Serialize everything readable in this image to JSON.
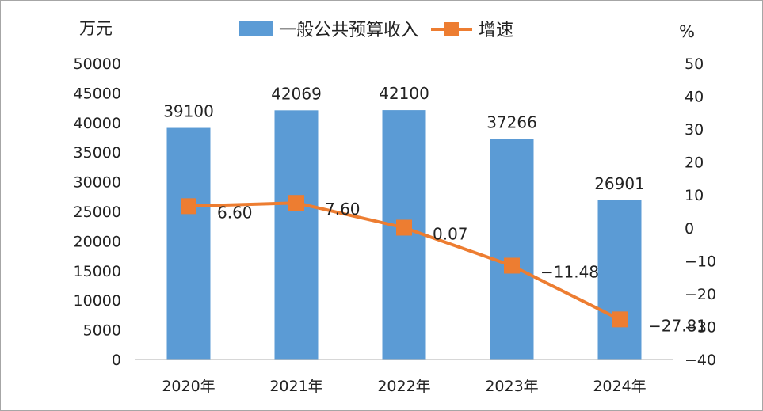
{
  "chart_data": {
    "type": "bar+line",
    "categories": [
      "2020年",
      "2021年",
      "2022年",
      "2023年",
      "2024年"
    ],
    "series": [
      {
        "name": "一般公共预算收入",
        "type": "bar",
        "axis": "left",
        "color": "#5b9bd5",
        "values": [
          39100,
          42069,
          42100,
          37266,
          26901
        ],
        "labels": [
          "39100",
          "42069",
          "42100",
          "37266",
          "26901"
        ]
      },
      {
        "name": "增速",
        "type": "line",
        "axis": "right",
        "color": "#ed7d31",
        "values": [
          6.6,
          7.6,
          0.07,
          -11.48,
          -27.81
        ],
        "labels": [
          "6.60",
          "7.60",
          "0.07",
          "-11.48",
          "-27.81"
        ]
      }
    ],
    "y_left": {
      "unit": "万元",
      "ylim": [
        0,
        50000
      ],
      "ticks": [
        "0",
        "5000",
        "10000",
        "15000",
        "20000",
        "25000",
        "30000",
        "35000",
        "40000",
        "45000",
        "50000"
      ]
    },
    "y_right": {
      "unit": "%",
      "ylim": [
        -40,
        50
      ],
      "ticks": [
        "-40",
        "-30",
        "-20",
        "-10",
        "0",
        "10",
        "20",
        "30",
        "40",
        "50"
      ]
    },
    "legend_position": "top-center",
    "grid": false
  }
}
